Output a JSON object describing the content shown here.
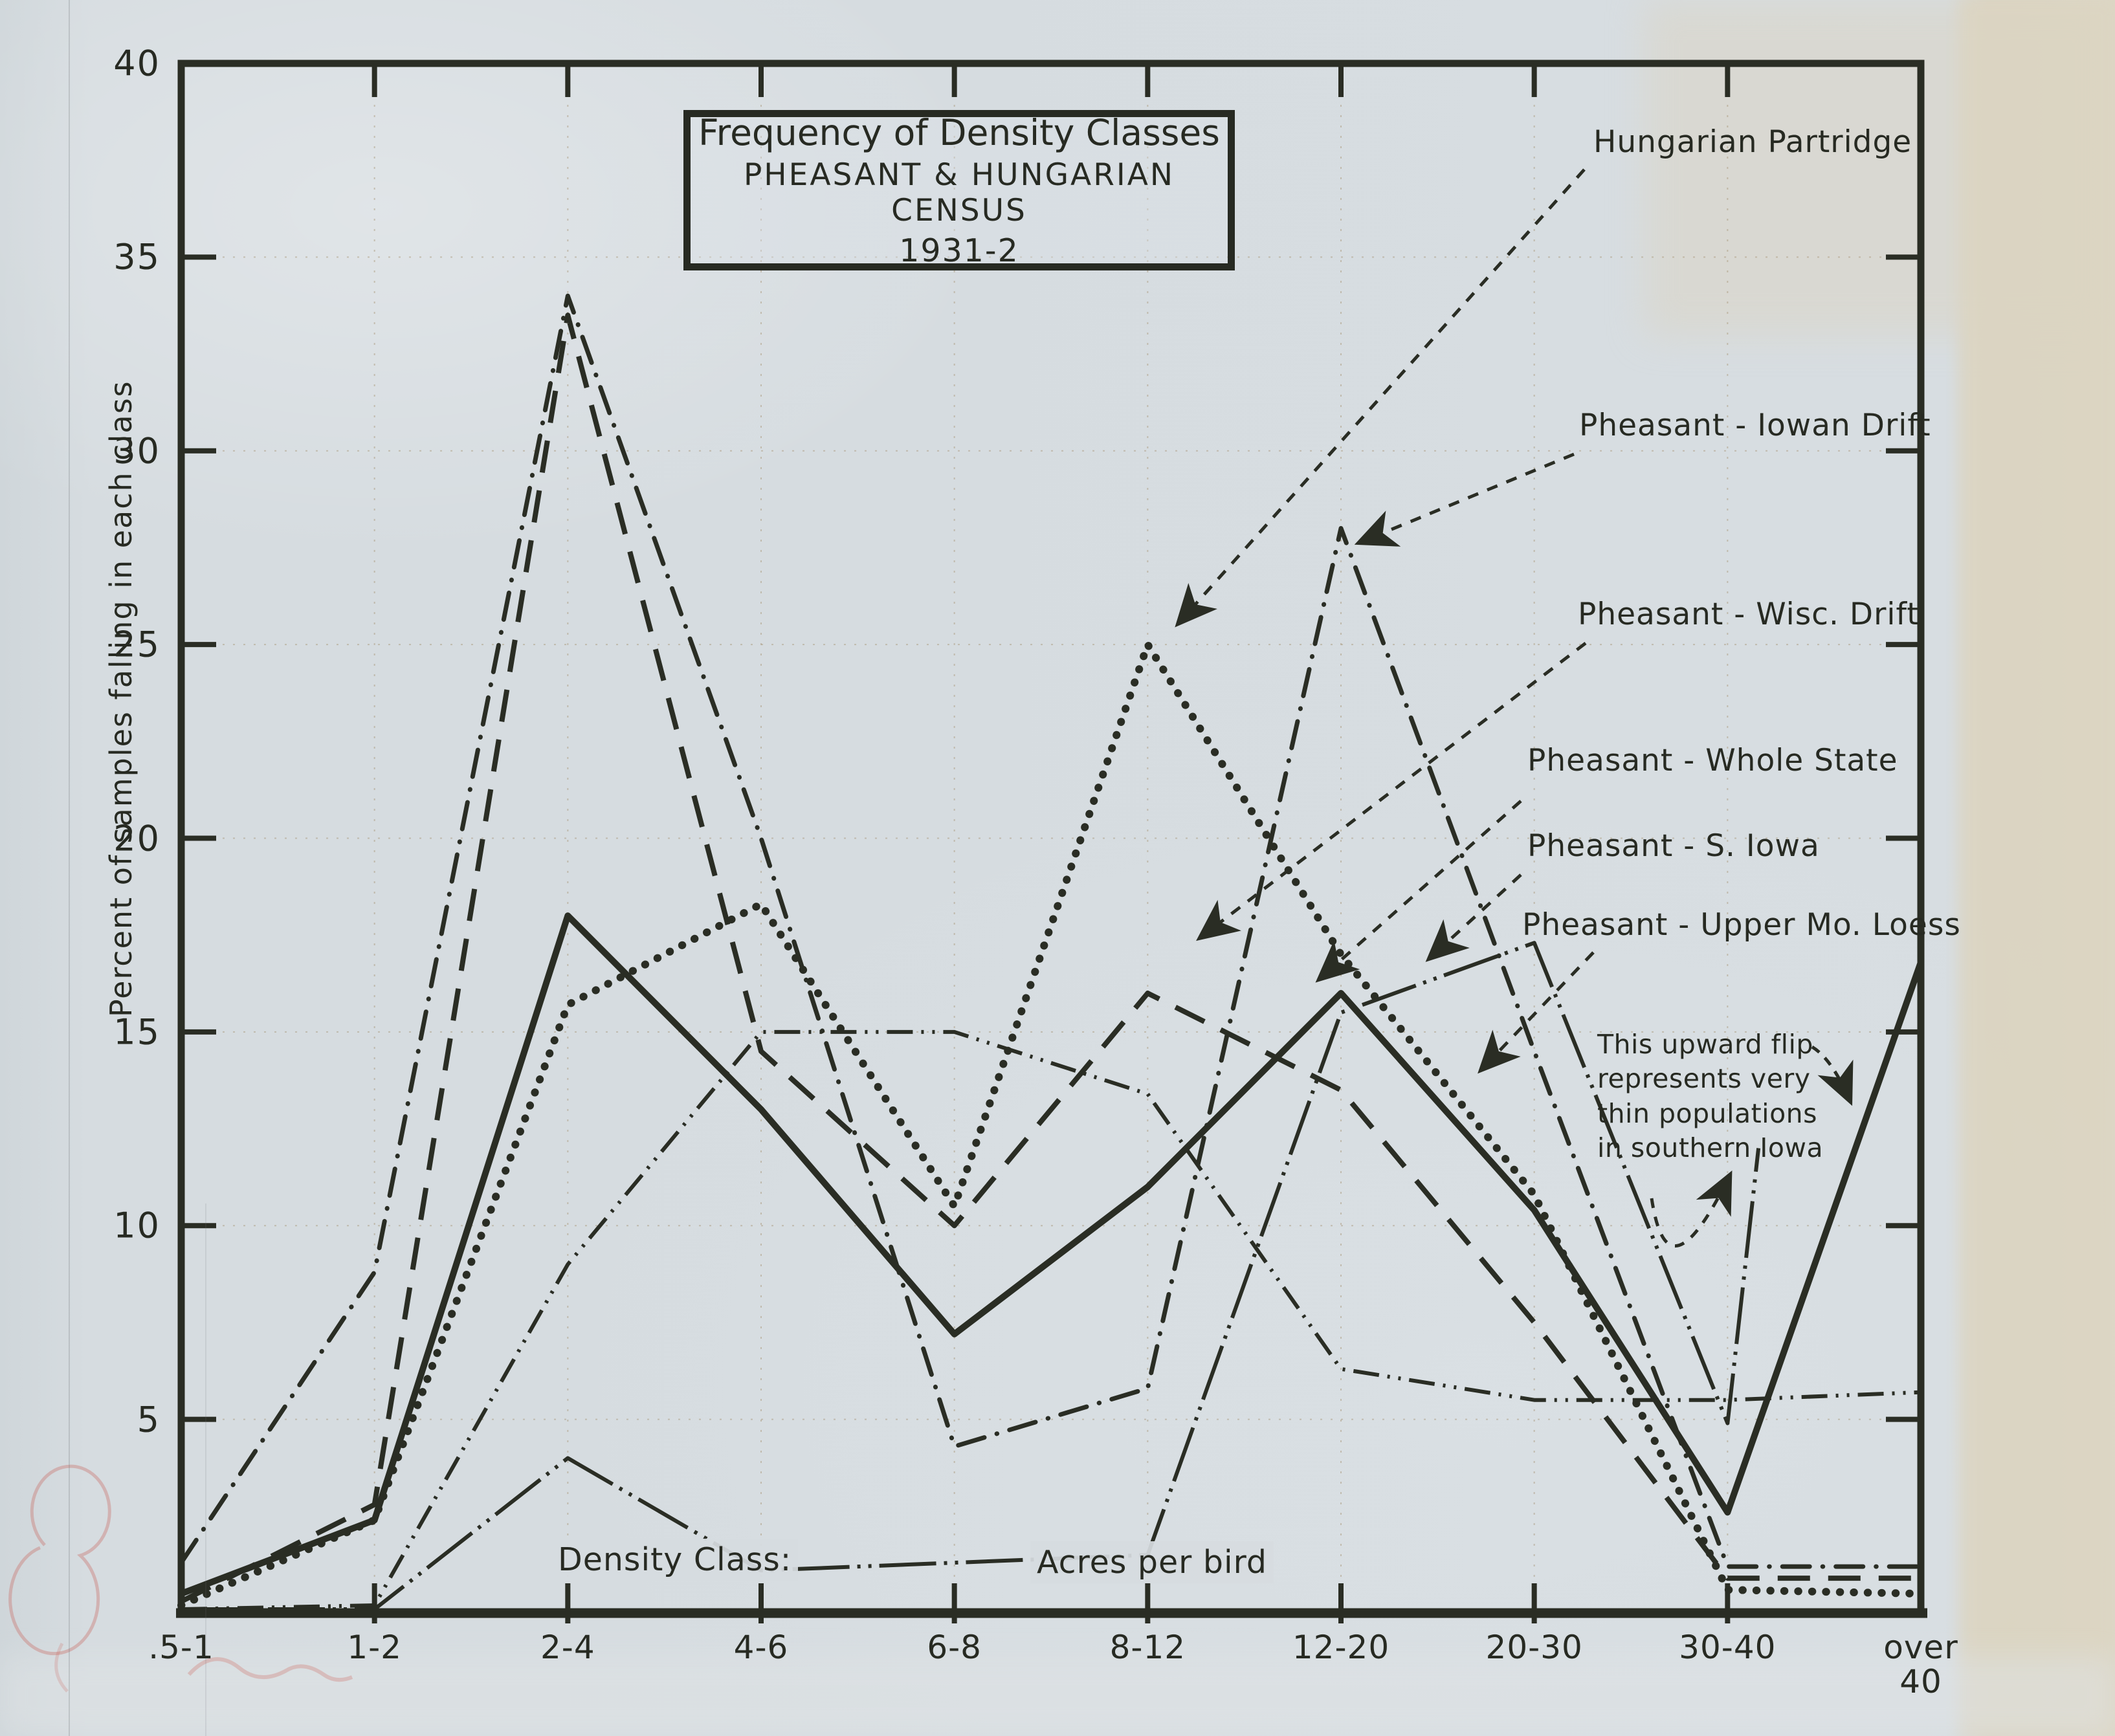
{
  "title_box": {
    "line1": "Frequency of Density Classes",
    "line2": "PHEASANT & HUNGARIAN CENSUS",
    "line3": "1931-2"
  },
  "y_axis": {
    "title": "Percent of samples falling in each class",
    "ticks": [
      40,
      35,
      30,
      25,
      20,
      15,
      10,
      5
    ]
  },
  "x_axis": {
    "label_left": "Density Class:",
    "label_right": "Acres per bird"
  },
  "legend": {
    "items": [
      {
        "id": "hungarian",
        "label": "Hungarian Partridge"
      },
      {
        "id": "iowan",
        "label": "Pheasant - Iowan Drift"
      },
      {
        "id": "wisc",
        "label": "Pheasant - Wisc. Drift"
      },
      {
        "id": "whole_state",
        "label": "Pheasant - Whole State"
      },
      {
        "id": "s_iowa",
        "label": "Pheasant - S. Iowa"
      },
      {
        "id": "mo_loess",
        "label": "Pheasant - Upper Mo. Loess"
      }
    ]
  },
  "annotation": {
    "lines": [
      "This upward flip",
      "represents very",
      "thin populations",
      "in southern Iowa"
    ]
  },
  "chart_data": {
    "type": "line",
    "title": "Frequency of Density Classes",
    "subtitle": "PHEASANT & HUNGARIAN CENSUS",
    "period": "1931-2",
    "xlabel": "Density Class: Acres per bird",
    "ylabel": "Percent of samples falling in each class",
    "ylim": [
      0,
      40
    ],
    "y_tick_step": 5,
    "grid": true,
    "categories": [
      ".5-1",
      "1-2",
      "2-4",
      "4-6",
      "6-8",
      "8-12",
      "12-20",
      "20-30",
      "30-40",
      "over 40"
    ],
    "series": [
      {
        "id": "s_iowa",
        "name": "Pheasant - S. Iowa",
        "style": "dash2dot",
        "values": [
          0.1,
          0.1,
          4.0,
          1.1,
          1.3,
          1.5,
          15.5,
          17.3,
          4.9,
          null
        ],
        "flip_end": {
          "between": [
            "30-40",
            "over 40"
          ],
          "fraction": 0.16,
          "value": 12
        }
      },
      {
        "id": "mo_loess",
        "name": "Pheasant - Upper Mo. Loess",
        "style": "dashdotdot",
        "values": [
          0.1,
          0.2,
          9.0,
          15,
          15,
          13.4,
          6.3,
          5.5,
          5.5,
          5.7
        ]
      },
      {
        "id": "wisc",
        "name": "Pheasant - Wisc. Drift",
        "style": "longdash",
        "values": [
          0.3,
          2.8,
          33.5,
          14.5,
          10,
          16,
          13.5,
          7.5,
          0.9,
          0.9
        ]
      },
      {
        "id": "iowan",
        "name": "Pheasant - Iowan Drift",
        "style": "dashdot",
        "values": [
          1.3,
          8.8,
          34,
          20,
          4.3,
          5.8,
          28,
          14.5,
          1.2,
          1.2
        ]
      },
      {
        "id": "hungarian",
        "name": "Hungarian Partridge",
        "style": "dotted",
        "values": [
          0.2,
          2.4,
          15.7,
          18.3,
          10.5,
          25,
          17,
          10.8,
          0.6,
          0.5
        ]
      },
      {
        "id": "whole_state",
        "name": "Pheasant - Whole State",
        "style": "solid",
        "values": [
          0.5,
          2.4,
          18,
          13,
          7.2,
          11,
          16,
          10.4,
          2.6,
          16.8
        ]
      }
    ],
    "ink_color": "#2a2d24",
    "pencil_grid_color": "rgba(165,145,110,0.45)"
  }
}
